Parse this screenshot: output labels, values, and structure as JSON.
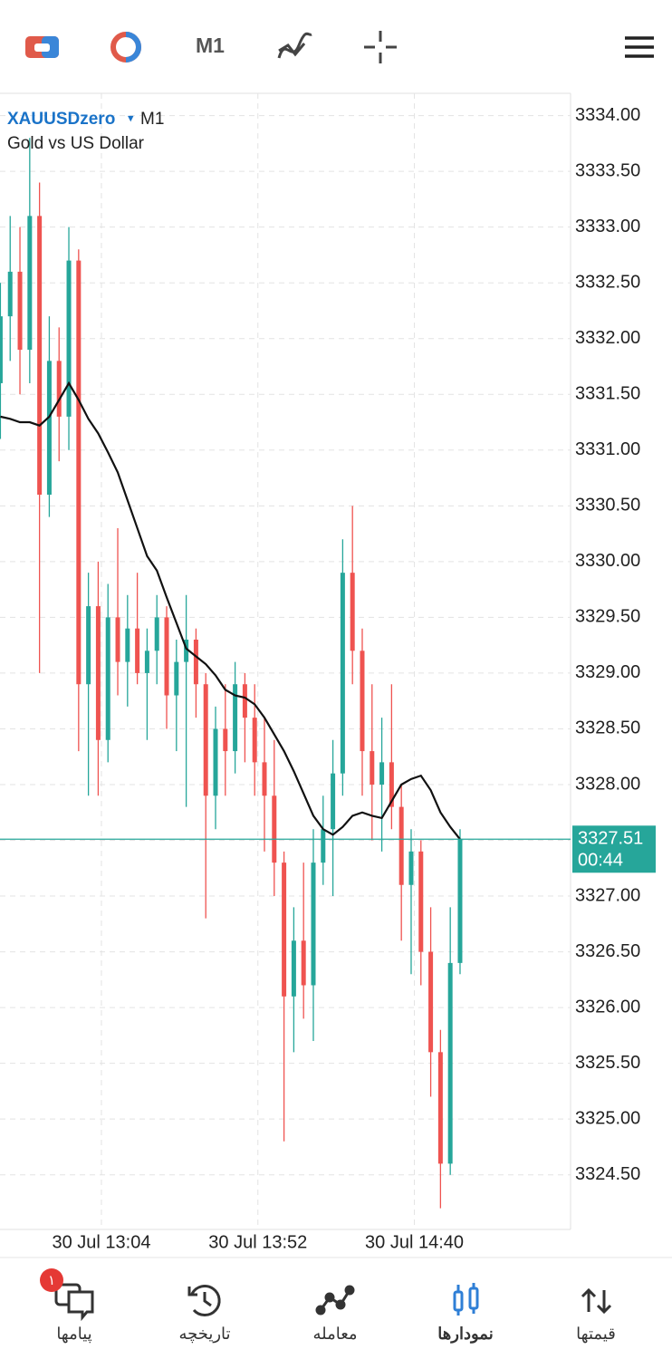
{
  "toolbar": {
    "timeframe": "M1"
  },
  "chart_data": {
    "type": "candlestick",
    "symbol": "XAUUSDzero",
    "symbol_arrow": "▾",
    "timeframe": "M1",
    "description": "Gold vs US Dollar",
    "up_color": "#26a69a",
    "down_color": "#ef5350",
    "open": [
      3331.6,
      3332.2,
      3332.6,
      3331.9,
      3333.1,
      3330.6,
      3331.8,
      3331.3,
      3332.7,
      3328.9,
      3329.6,
      3328.4,
      3329.5,
      3329.1,
      3329.4,
      3329.0,
      3329.2,
      3329.5,
      3328.8,
      3329.1,
      3329.3,
      3328.9,
      3327.9,
      3328.5,
      3328.3,
      3328.9,
      3328.6,
      3328.2,
      3327.9,
      3327.3,
      3326.1,
      3326.6,
      3326.2,
      3327.3,
      3327.6,
      3328.1,
      3329.9,
      3329.2,
      3328.3,
      3328.0,
      3328.2,
      3327.8,
      3327.1,
      3327.4,
      3326.5,
      3325.6,
      3324.6,
      3326.4
    ],
    "high": [
      3332.5,
      3333.1,
      3333.0,
      3333.8,
      3333.4,
      3332.2,
      3332.1,
      3333.0,
      3332.8,
      3329.9,
      3330.0,
      3329.8,
      3330.3,
      3329.7,
      3329.9,
      3329.4,
      3329.7,
      3329.6,
      3329.3,
      3329.7,
      3329.4,
      3329.0,
      3328.7,
      3328.9,
      3329.1,
      3329.0,
      3328.9,
      3328.6,
      3328.4,
      3327.4,
      3326.9,
      3327.3,
      3327.6,
      3327.9,
      3328.4,
      3330.2,
      3330.5,
      3329.4,
      3328.9,
      3328.6,
      3328.9,
      3328.0,
      3327.6,
      3327.5,
      3326.9,
      3325.8,
      3326.9,
      3327.6
    ],
    "low": [
      3331.1,
      3331.8,
      3331.5,
      3331.6,
      3329.0,
      3330.4,
      3330.9,
      3331.0,
      3328.3,
      3327.9,
      3327.9,
      3328.2,
      3328.8,
      3328.7,
      3328.9,
      3328.4,
      3328.9,
      3328.5,
      3328.3,
      3327.8,
      3328.6,
      3326.8,
      3327.6,
      3327.9,
      3328.1,
      3328.2,
      3327.9,
      3327.4,
      3327.0,
      3324.8,
      3325.6,
      3325.9,
      3325.7,
      3327.1,
      3327.0,
      3327.9,
      3328.9,
      3327.9,
      3327.5,
      3327.4,
      3327.6,
      3326.6,
      3326.3,
      3326.2,
      3325.2,
      3324.2,
      3324.5,
      3326.3
    ],
    "close": [
      3332.2,
      3332.6,
      3331.9,
      3333.1,
      3330.6,
      3331.8,
      3331.3,
      3332.7,
      3328.9,
      3329.6,
      3328.4,
      3329.5,
      3329.1,
      3329.4,
      3329.0,
      3329.2,
      3329.5,
      3328.8,
      3329.1,
      3329.3,
      3328.9,
      3327.9,
      3328.5,
      3328.3,
      3328.9,
      3328.6,
      3328.2,
      3327.9,
      3327.3,
      3326.1,
      3326.6,
      3326.2,
      3327.3,
      3327.6,
      3328.1,
      3329.9,
      3329.2,
      3328.3,
      3328.0,
      3328.2,
      3327.8,
      3327.1,
      3327.4,
      3326.5,
      3325.6,
      3324.6,
      3326.4,
      3327.51
    ],
    "ma": {
      "color": "#111111",
      "values": [
        3331.3,
        3331.28,
        3331.25,
        3331.25,
        3331.22,
        3331.3,
        3331.45,
        3331.6,
        3331.45,
        3331.28,
        3331.15,
        3330.98,
        3330.8,
        3330.55,
        3330.3,
        3330.05,
        3329.92,
        3329.68,
        3329.45,
        3329.22,
        3329.15,
        3329.08,
        3328.98,
        3328.85,
        3328.8,
        3328.78,
        3328.72,
        3328.6,
        3328.45,
        3328.3,
        3328.12,
        3327.92,
        3327.72,
        3327.6,
        3327.55,
        3327.62,
        3327.72,
        3327.75,
        3327.72,
        3327.7,
        3327.85,
        3328.0,
        3328.05,
        3328.08,
        3327.95,
        3327.75,
        3327.62,
        3327.51
      ]
    },
    "xlim": [
      -0.04,
      58.3
    ],
    "xticks": [
      {
        "value": 10.33,
        "label": "30 Jul 13:04"
      },
      {
        "value": 26.33,
        "label": "30 Jul 13:52"
      },
      {
        "value": 42.33,
        "label": "30 Jul 14:40"
      }
    ],
    "ylim": [
      3324.01,
      3334.2
    ],
    "yticks": [
      {
        "value": 3324.5,
        "label": "3324.50"
      },
      {
        "value": 3325,
        "label": "3325.00"
      },
      {
        "value": 3325.5,
        "label": "3325.50"
      },
      {
        "value": 3326,
        "label": "3326.00"
      },
      {
        "value": 3326.5,
        "label": "3326.50"
      },
      {
        "value": 3327,
        "label": "3327.00"
      },
      {
        "value": 3327.5,
        "label": "3327.50"
      },
      {
        "value": 3328,
        "label": "3328.00"
      },
      {
        "value": 3328.5,
        "label": "3328.50"
      },
      {
        "value": 3329,
        "label": "3329.00"
      },
      {
        "value": 3329.5,
        "label": "3329.50"
      },
      {
        "value": 3330,
        "label": "3330.00"
      },
      {
        "value": 3330.5,
        "label": "3330.50"
      },
      {
        "value": 3331,
        "label": "3331.00"
      },
      {
        "value": 3331.5,
        "label": "3331.50"
      },
      {
        "value": 3332,
        "label": "3332.00"
      },
      {
        "value": 3332.5,
        "label": "3332.50"
      },
      {
        "value": 3333,
        "label": "3333.00"
      },
      {
        "value": 3333.5,
        "label": "3333.50"
      },
      {
        "value": 3334,
        "label": "3334.00"
      }
    ],
    "grid": true,
    "current": {
      "value": 3327.51,
      "timer": "00:44",
      "color": "#26a69a"
    }
  },
  "nav": {
    "badge": "۱",
    "items": [
      "پیامها",
      "تاریخچه",
      "معامله",
      "نمودارها",
      "قیمتها"
    ],
    "active": 3
  }
}
